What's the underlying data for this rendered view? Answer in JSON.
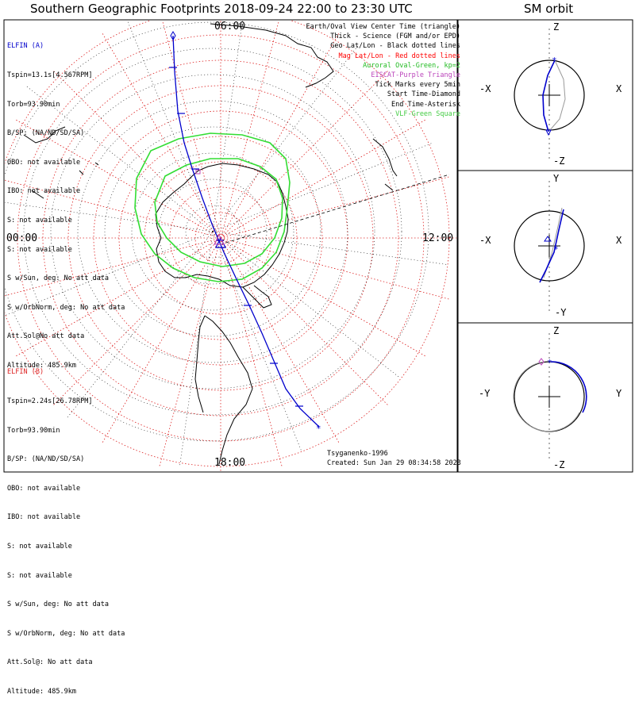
{
  "titles": {
    "main": "Southern Geographic Footprints 2018-09-24 22:00 to 23:30 UTC",
    "orbit": "SM orbit"
  },
  "elfin_a": {
    "header": "ELFIN (A)",
    "lines": [
      "Tspin=13.1s[4.567RPM]",
      "Torb=93.90min",
      "B/SP: (NA/ND/SD/SA)",
      "OBO: not available",
      "IBO: not available",
      "S: not available",
      "S: not available",
      "S w/Sun, deg: No att data",
      "S w/OrbNorm, deg: No att data",
      "Att.Sol@No att data",
      "Altitude: 485.9km"
    ]
  },
  "elfin_b": {
    "header": "ELFIN (B)",
    "lines": [
      "Tspin=2.24s[26.78RPM]",
      "Torb=93.90min",
      "B/SP: (NA/ND/SD/SA)",
      "OBO: not available",
      "IBO: not available",
      "S: not available",
      "S: not available",
      "S w/Sun, deg: No att data",
      "S w/OrbNorm, deg: No att data",
      "Att.Sol@: No att data",
      "Altitude: 485.9km"
    ]
  },
  "legend": [
    {
      "text": "Earth/Oval View Center Time (triangle)",
      "color": "#000000"
    },
    {
      "text": "Thick - Science (FGM and/or EPD)",
      "color": "#000000"
    },
    {
      "text": "Geo Lat/Lon - Black dotted lines",
      "color": "#000000"
    },
    {
      "text": "Mag Lat/Lon - Red dotted lines",
      "color": "#ff0000"
    },
    {
      "text": "Auroral Oval-Green, kp=2",
      "color": "#22bb22"
    },
    {
      "text": "EISCAT-Purple Triangle",
      "color": "#bb44bb"
    },
    {
      "text": "Tick Marks every 5min",
      "color": "#000000"
    },
    {
      "text": "Start Time-Diamond",
      "color": "#000000"
    },
    {
      "text": "End Time-Asterisk",
      "color": "#000000"
    },
    {
      "text": "VLF-Green Square",
      "color": "#44cc44"
    }
  ],
  "local_time_labels": {
    "top": "06:00",
    "left": "00:00",
    "right": "12:00",
    "bottom": "18:00"
  },
  "footer": {
    "model": "Tsyganenko-1996",
    "created": "Created: Sun Jan 29 08:34:58 2023"
  },
  "orbit_panels": [
    {
      "top": "Z",
      "bottom": "-Z",
      "left": "-X",
      "right": "X"
    },
    {
      "top": "Y",
      "bottom": "-Y",
      "left": "-X",
      "right": "X"
    },
    {
      "top": "Z",
      "bottom": "-Z",
      "left": "-Y",
      "right": "Y"
    }
  ],
  "colors": {
    "track": "#0000cc",
    "oval": "#33dd33",
    "mag_grid": "#dd2222",
    "elfin_a": "#0000cc",
    "elfin_b": "#dd2222"
  }
}
